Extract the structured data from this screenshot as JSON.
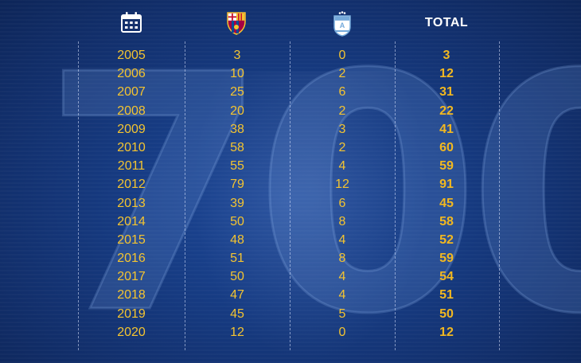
{
  "header": {
    "calendar_icon": "calendar-icon",
    "club_icon": "fc-barcelona-crest-icon",
    "country_icon": "argentina-badge-icon",
    "total_label": "TOTAL"
  },
  "watermark": "700",
  "colors": {
    "accent": "#f4c430",
    "background": "#173d86",
    "divider": "#dce6ff"
  },
  "rows": [
    {
      "year": "2005",
      "club": "3",
      "country": "0",
      "total": "3"
    },
    {
      "year": "2006",
      "club": "10",
      "country": "2",
      "total": "12"
    },
    {
      "year": "2007",
      "club": "25",
      "country": "6",
      "total": "31"
    },
    {
      "year": "2008",
      "club": "20",
      "country": "2",
      "total": "22"
    },
    {
      "year": "2009",
      "club": "38",
      "country": "3",
      "total": "41"
    },
    {
      "year": "2010",
      "club": "58",
      "country": "2",
      "total": "60"
    },
    {
      "year": "2011",
      "club": "55",
      "country": "4",
      "total": "59"
    },
    {
      "year": "2012",
      "club": "79",
      "country": "12",
      "total": "91"
    },
    {
      "year": "2013",
      "club": "39",
      "country": "6",
      "total": "45"
    },
    {
      "year": "2014",
      "club": "50",
      "country": "8",
      "total": "58"
    },
    {
      "year": "2015",
      "club": "48",
      "country": "4",
      "total": "52"
    },
    {
      "year": "2016",
      "club": "51",
      "country": "8",
      "total": "59"
    },
    {
      "year": "2017",
      "club": "50",
      "country": "4",
      "total": "54"
    },
    {
      "year": "2018",
      "club": "47",
      "country": "4",
      "total": "51"
    },
    {
      "year": "2019",
      "club": "45",
      "country": "5",
      "total": "50"
    },
    {
      "year": "2020",
      "club": "12",
      "country": "0",
      "total": "12"
    }
  ]
}
